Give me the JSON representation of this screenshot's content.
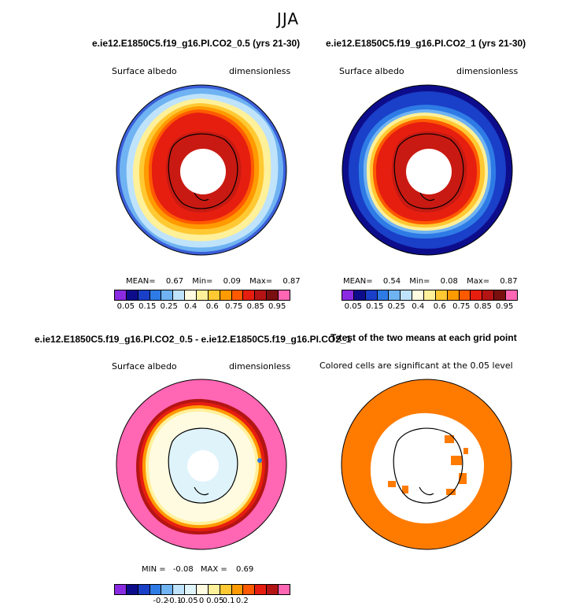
{
  "figure_title": "JJA",
  "panels": {
    "p1": {
      "title": "e.ie12.E1850C5.f19_g16.PI.CO2_0.5 (yrs 21-30)",
      "left_label": "Surface albedo",
      "right_label": "dimensionless",
      "stats": {
        "mean_label": "MEAN=",
        "mean": "0.67",
        "min_label": "Min=",
        "min": "0.09",
        "max_label": "Max=",
        "max": "0.87"
      }
    },
    "p2": {
      "title": "e.ie12.E1850C5.f19_g16.PI.CO2_1 (yrs 21-30)",
      "left_label": "Surface albedo",
      "right_label": "dimensionless",
      "stats": {
        "mean_label": "MEAN=",
        "mean": "0.54",
        "min_label": "Min=",
        "min": "0.08",
        "max_label": "Max=",
        "max": "0.87"
      }
    },
    "p3": {
      "title": "e.ie12.E1850C5.f19_g16.PI.CO2_0.5 - e.ie12.E1850C5.f19_g16.PI.CO2_1",
      "left_label": "Surface albedo",
      "right_label": "dimensionless",
      "stats": {
        "min_label": "MIN =",
        "min": "-0.08",
        "max_label": "MAX =",
        "max": "0.69"
      }
    },
    "p4": {
      "title": "T-test of the two means at each grid point",
      "subtitle": "Colored cells are significant at the 0.05 level",
      "significant_color": "#ff7b00"
    }
  },
  "colorbar_albedo": {
    "colors": [
      "#8a2be2",
      "#0d0d8c",
      "#1a3fc8",
      "#2e7be6",
      "#6fb3f2",
      "#bfe3fb",
      "#fffbe0",
      "#fff09a",
      "#ffc933",
      "#ff9a00",
      "#ff5a00",
      "#e61e10",
      "#b41414",
      "#7a0f0f",
      "#ff66b3"
    ],
    "labels": [
      "0.05",
      "0.15",
      "0.25",
      "0.4",
      "0.6",
      "0.75",
      "0.85",
      "0.95"
    ]
  },
  "colorbar_diff": {
    "colors": [
      "#8a2be2",
      "#0d0d8c",
      "#1a3fc8",
      "#2e7be6",
      "#6fb3f2",
      "#bfe3fb",
      "#e0f4fb",
      "#fffbe0",
      "#fff09a",
      "#ffc933",
      "#ff9a00",
      "#ff5a00",
      "#e61e10",
      "#b41414",
      "#ff66b3"
    ],
    "labels": [
      "-0.2",
      "-0.1",
      "-0.05",
      "0",
      "0.05",
      "0.1",
      "0.2"
    ]
  }
}
